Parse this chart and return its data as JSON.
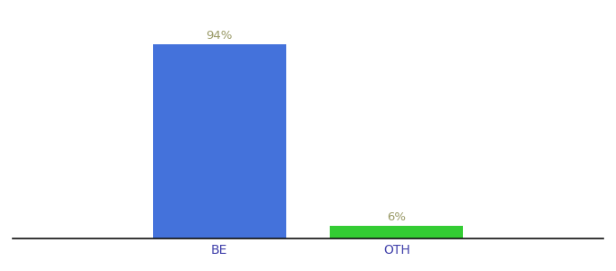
{
  "categories": [
    "BE",
    "OTH"
  ],
  "values": [
    94,
    6
  ],
  "bar_colors": [
    "#4472db",
    "#33cc33"
  ],
  "value_labels": [
    "94%",
    "6%"
  ],
  "background_color": "#ffffff",
  "ylim": [
    0,
    105
  ],
  "bar_width": 0.18,
  "label_fontsize": 9.5,
  "tick_fontsize": 10,
  "label_color": "#999966",
  "tick_color": "#4040aa",
  "axis_line_color": "#111111",
  "x_positions": [
    0.38,
    0.62
  ],
  "xlim": [
    0.1,
    0.9
  ]
}
